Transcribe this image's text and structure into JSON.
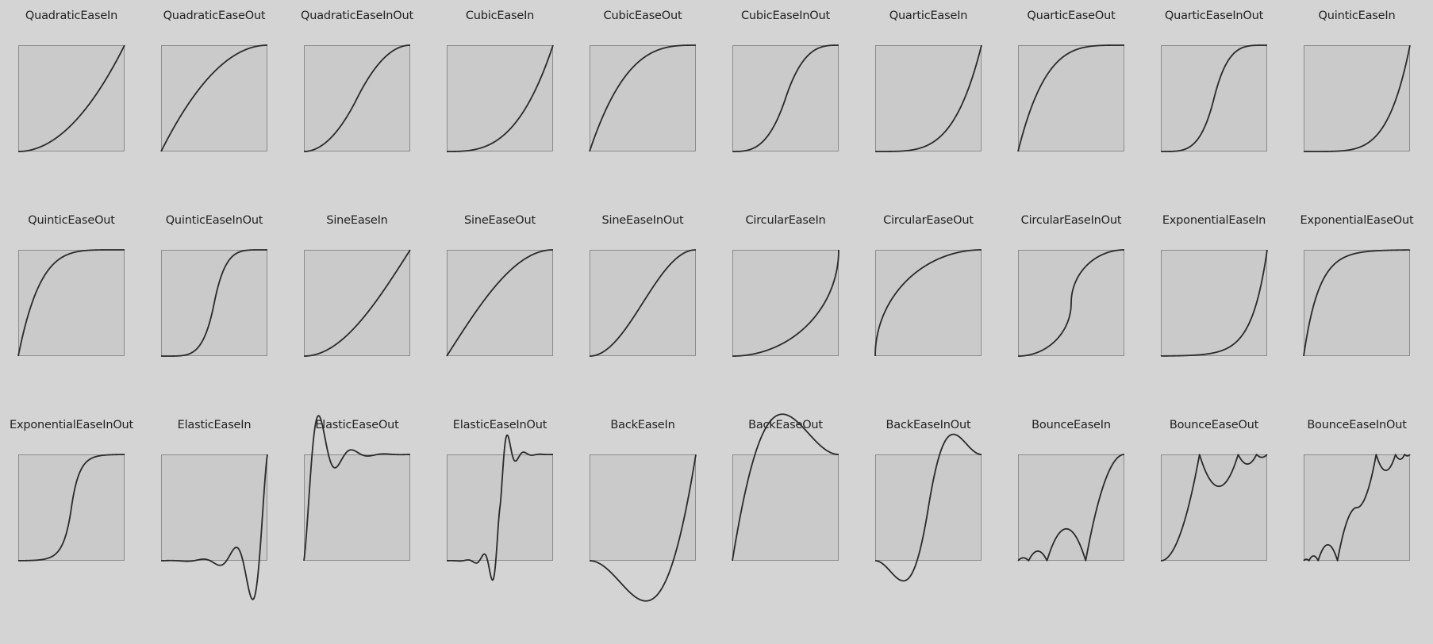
{
  "colors": {
    "background": "#d4d4d4",
    "plot_fill": "#cacaca",
    "plot_border": "#8c8c8c",
    "curve": "#2a2a2a",
    "text": "#222222"
  },
  "curves": [
    {
      "name": "QuadraticEaseIn"
    },
    {
      "name": "QuadraticEaseOut"
    },
    {
      "name": "QuadraticEaseInOut"
    },
    {
      "name": "CubicEaseIn"
    },
    {
      "name": "CubicEaseOut"
    },
    {
      "name": "CubicEaseInOut"
    },
    {
      "name": "QuarticEaseIn"
    },
    {
      "name": "QuarticEaseOut"
    },
    {
      "name": "QuarticEaseInOut"
    },
    {
      "name": "QuinticEaseIn"
    },
    {
      "name": "QuinticEaseOut"
    },
    {
      "name": "QuinticEaseInOut"
    },
    {
      "name": "SineEaseIn"
    },
    {
      "name": "SineEaseOut"
    },
    {
      "name": "SineEaseInOut"
    },
    {
      "name": "CircularEaseIn"
    },
    {
      "name": "CircularEaseOut"
    },
    {
      "name": "CircularEaseInOut"
    },
    {
      "name": "ExponentialEaseIn"
    },
    {
      "name": "ExponentialEaseOut"
    },
    {
      "name": "ExponentialEaseInOut"
    },
    {
      "name": "ElasticEaseIn"
    },
    {
      "name": "ElasticEaseOut"
    },
    {
      "name": "ElasticEaseInOut"
    },
    {
      "name": "BackEaseIn"
    },
    {
      "name": "BackEaseOut"
    },
    {
      "name": "BackEaseInOut"
    },
    {
      "name": "BounceEaseIn"
    },
    {
      "name": "BounceEaseOut"
    },
    {
      "name": "BounceEaseInOut"
    }
  ]
}
